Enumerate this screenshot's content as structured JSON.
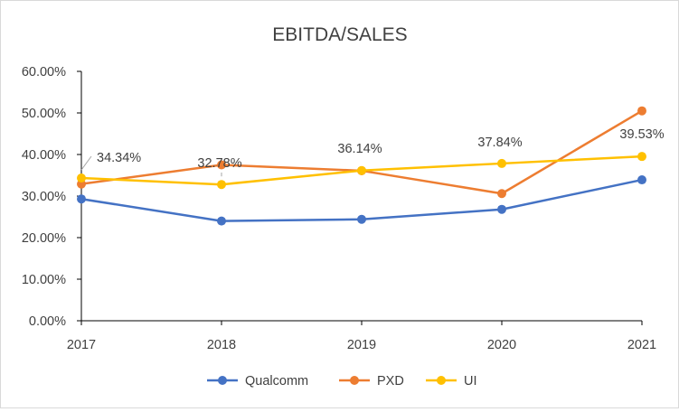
{
  "chart_data": {
    "type": "line",
    "title": "EBITDA/SALES",
    "xlabel": "",
    "ylabel": "",
    "categories": [
      "2017",
      "2018",
      "2019",
      "2020",
      "2021"
    ],
    "ylim": [
      0,
      60
    ],
    "yticks": [
      "0.00%",
      "10.00%",
      "20.00%",
      "30.00%",
      "40.00%",
      "50.00%",
      "60.00%"
    ],
    "series": [
      {
        "name": "Qualcomm",
        "color": "#4472C4",
        "values": [
          29.3,
          24.0,
          24.4,
          26.8,
          33.9
        ]
      },
      {
        "name": "PXD",
        "color": "#ED7D31",
        "values": [
          32.9,
          37.5,
          36.1,
          30.6,
          50.5
        ]
      },
      {
        "name": "UI",
        "color": "#FFC000",
        "values": [
          34.34,
          32.78,
          36.14,
          37.84,
          39.53
        ],
        "labels": [
          "34.34%",
          "32.78%",
          "36.14%",
          "37.84%",
          "39.53%"
        ]
      }
    ],
    "legend": "bottom"
  }
}
